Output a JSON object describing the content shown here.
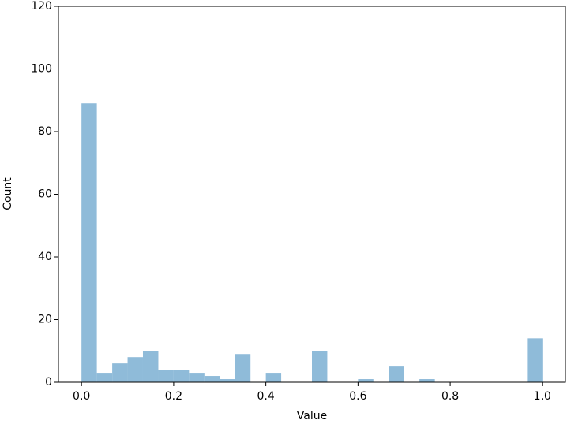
{
  "chart_data": {
    "type": "histogram",
    "xlabel": "Value",
    "ylabel": "Count",
    "bins": [
      0,
      0.0333,
      0.0667,
      0.1,
      0.1333,
      0.1667,
      0.2,
      0.2333,
      0.2667,
      0.3,
      0.3333,
      0.3667,
      0.4,
      0.4333,
      0.4667,
      0.5,
      0.5333,
      0.5667,
      0.6,
      0.6333,
      0.6667,
      0.7,
      0.7333,
      0.7667,
      0.8,
      0.8333,
      0.8667,
      0.9,
      0.9333,
      0.9667,
      1
    ],
    "values": [
      89,
      3,
      6,
      8,
      10,
      4,
      4,
      3,
      2,
      1,
      9,
      0,
      3,
      0,
      0,
      10,
      0,
      0,
      1,
      0,
      5,
      0,
      1,
      0,
      0,
      0,
      0,
      0,
      0,
      14
    ],
    "color": "#8fbbd9",
    "xlim": [
      -0.05,
      1.05
    ],
    "xticks": [
      {
        "value": 0,
        "label": "0.0"
      },
      {
        "value": 0.2,
        "label": "0.2"
      },
      {
        "value": 0.4,
        "label": "0.4"
      },
      {
        "value": 0.6,
        "label": "0.6"
      },
      {
        "value": 0.8,
        "label": "0.8"
      },
      {
        "value": 1,
        "label": "1.0"
      }
    ],
    "ylim": [
      0,
      120
    ],
    "yticks": [
      0,
      20,
      40,
      60,
      80,
      100,
      120
    ],
    "grid": false
  }
}
